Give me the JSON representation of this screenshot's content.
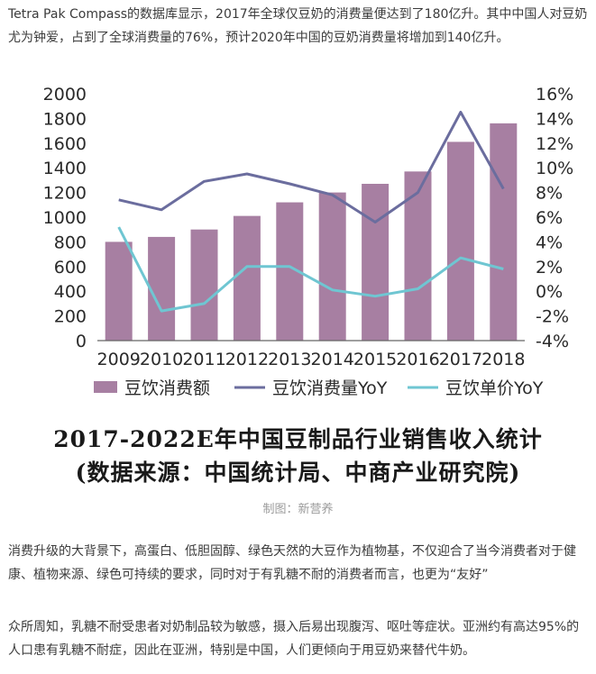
{
  "article": {
    "intro": "Tetra Pak Compass的数据库显示，2017年全球仅豆奶的消费量便达到了180亿升。其中中国人对豆奶尤为钟爱，占到了全球消费量的76%，预计2020年中国的豆奶消费量将增加到140亿升。",
    "caption_line1": "2017-2022E年中国豆制品行业销售收入统计",
    "caption_line2": "(数据来源：中国统计局、中商产业研究院)",
    "credit": "制图：新营养",
    "para2": "消费升级的大背景下，高蛋白、低胆固醇、绿色天然的大豆作为植物基，不仅迎合了当今消费者对于健康、植物来源、绿色可持续的要求，同时对于有乳糖不耐的消费者而言，也更为“友好”",
    "para3": "众所周知，乳糖不耐受患者对奶制品较为敏感，摄入后易出现腹泻、呕吐等症状。亚洲约有高达95%的人口患有乳糖不耐症，因此在亚洲，特别是中国，人们更倾向于用豆奶来替代牛奶。"
  },
  "chart_data": {
    "type": "bar",
    "categories": [
      "2009",
      "2010",
      "2011",
      "2012",
      "2013",
      "2014",
      "2015",
      "2016",
      "2017",
      "2018"
    ],
    "left_axis": {
      "ylim": [
        0,
        2000
      ],
      "ticks": [
        "0",
        "200",
        "400",
        "600",
        "800",
        "1000",
        "1200",
        "1400",
        "1600",
        "1800",
        "2000"
      ]
    },
    "right_axis": {
      "ylim": [
        -4,
        16
      ],
      "ticks": [
        "-4%",
        "-2%",
        "0%",
        "2%",
        "4%",
        "6%",
        "8%",
        "10%",
        "12%",
        "14%",
        "16%"
      ]
    },
    "series": [
      {
        "name": "豆饮消费额",
        "kind": "bar",
        "axis": "left",
        "color": "#a77fa2",
        "values": [
          800,
          840,
          900,
          1010,
          1120,
          1200,
          1270,
          1370,
          1610,
          1760
        ]
      },
      {
        "name": "豆饮消费量YoY",
        "kind": "line",
        "axis": "right",
        "color": "#6b6d9e",
        "values": [
          7.4,
          6.6,
          8.9,
          9.5,
          8.7,
          7.8,
          5.6,
          8.0,
          14.5,
          8.3
        ]
      },
      {
        "name": "豆饮单价YoY",
        "kind": "line",
        "axis": "right",
        "color": "#6fc6d2",
        "values": [
          5.2,
          -1.6,
          -1.0,
          2.0,
          2.0,
          0.1,
          -0.4,
          0.2,
          2.7,
          1.8
        ]
      }
    ],
    "legend_position": "bottom",
    "grid": false
  }
}
